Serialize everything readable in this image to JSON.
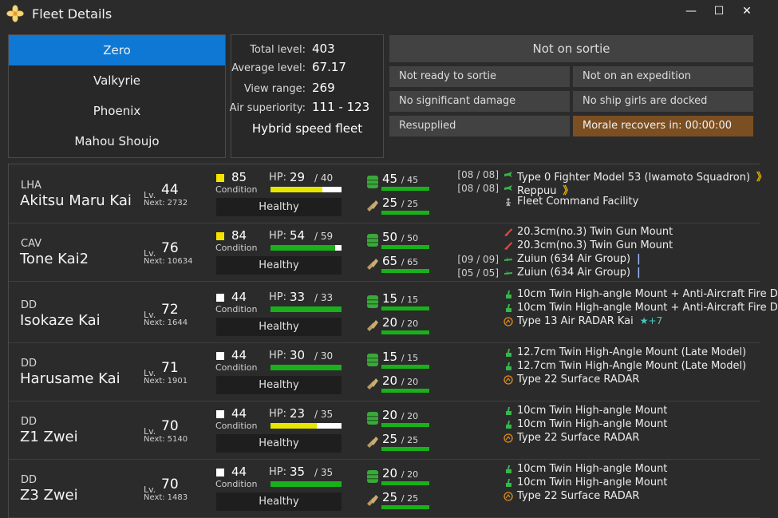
{
  "window": {
    "title": "Fleet Details",
    "minimize": "—",
    "maximize": "☐",
    "close": "✕"
  },
  "fleets": [
    {
      "label": "Zero",
      "active": true
    },
    {
      "label": "Valkyrie",
      "active": false
    },
    {
      "label": "Phoenix",
      "active": false
    },
    {
      "label": "Mahou Shoujo",
      "active": false
    }
  ],
  "stats": {
    "total_level_label": "Total level:",
    "total_level": "403",
    "avg_level_label": "Average level:",
    "avg_level": "67.17",
    "view_range_label": "View range:",
    "view_range": "269",
    "air_label": "Air superiority:",
    "air": "111 - 123",
    "speed": "Hybrid speed fleet"
  },
  "status": {
    "sortie": "Not on sortie",
    "ready": "Not ready to sortie",
    "expedition": "Not on an expedition",
    "damage": "No significant damage",
    "docked": "No ship girls are docked",
    "supply": "Resupplied",
    "morale": "Morale recovers in: 00:00:00"
  },
  "labels": {
    "lv": "Lv.",
    "next": "Next:",
    "condition": "Condition",
    "hp": "HP:"
  },
  "colors": {
    "accent": "#0f78d4",
    "hp_yellow": "#e6e600",
    "hp_green": "#19b119",
    "morale_bg": "#7b4f22"
  },
  "ships": [
    {
      "type": "LHA",
      "name": "Akitsu Maru Kai",
      "level": "44",
      "next": "2732",
      "condition": "85",
      "cond_color": "#f5e400",
      "hp": "29",
      "hp_max": "/ 40",
      "hp_fraction": 0.725,
      "hp_color": "#e6e600",
      "health": "Healthy",
      "fuel": "45",
      "fuel_max": "/ 45",
      "ammo": "25",
      "ammo_max": "/ 25",
      "equipment": [
        {
          "slot": "[08 / 08]",
          "icon": "fighter-icon",
          "name": "Type 0 Fighter Model 53 (Iwamoto Squadron)",
          "extra": "》",
          "extra_kind": "prof-yellow"
        },
        {
          "slot": "[08 / 08]",
          "icon": "fighter-icon",
          "name": "Reppuu",
          "extra": "》",
          "extra_kind": "prof-yellow"
        },
        {
          "slot": "",
          "icon": "facility-icon",
          "name": "Fleet Command Facility",
          "extra": "",
          "extra_kind": ""
        }
      ]
    },
    {
      "type": "CAV",
      "name": "Tone Kai2",
      "level": "76",
      "next": "10634",
      "condition": "84",
      "cond_color": "#f5e400",
      "hp": "54",
      "hp_max": "/ 59",
      "hp_fraction": 0.915,
      "hp_color": "#19b119",
      "health": "Healthy",
      "fuel": "50",
      "fuel_max": "/ 50",
      "ammo": "65",
      "ammo_max": "/ 65",
      "equipment": [
        {
          "slot": "",
          "icon": "heavy-gun-icon",
          "name": "20.3cm(no.3) Twin Gun Mount",
          "extra": "",
          "extra_kind": ""
        },
        {
          "slot": "",
          "icon": "heavy-gun-icon",
          "name": "20.3cm(no.3) Twin Gun Mount",
          "extra": "",
          "extra_kind": ""
        },
        {
          "slot": "[09 / 09]",
          "icon": "seaplane-icon",
          "name": "Zuiun (634 Air Group)",
          "extra": "|",
          "extra_kind": "prof-bar"
        },
        {
          "slot": "[05 / 05]",
          "icon": "seaplane-icon",
          "name": "Zuiun (634 Air Group)",
          "extra": "|",
          "extra_kind": "prof-bar"
        }
      ]
    },
    {
      "type": "DD",
      "name": "Isokaze Kai",
      "level": "72",
      "next": "1644",
      "condition": "44",
      "cond_color": "#ffffff",
      "hp": "33",
      "hp_max": "/ 33",
      "hp_fraction": 1.0,
      "hp_color": "#19b119",
      "health": "Healthy",
      "fuel": "15",
      "fuel_max": "/ 15",
      "ammo": "20",
      "ammo_max": "/ 20",
      "equipment": [
        {
          "slot": "",
          "icon": "ha-gun-icon",
          "name": "10cm Twin High-angle Mount + Anti-Aircraft Fire D",
          "extra": "",
          "extra_kind": ""
        },
        {
          "slot": "",
          "icon": "ha-gun-icon",
          "name": "10cm Twin High-angle Mount + Anti-Aircraft Fire D",
          "extra": "",
          "extra_kind": ""
        },
        {
          "slot": "",
          "icon": "radar-icon",
          "name": "Type 13 Air RADAR Kai",
          "extra": "★+7",
          "extra_kind": "improve"
        }
      ]
    },
    {
      "type": "DD",
      "name": "Harusame Kai",
      "level": "71",
      "next": "1901",
      "condition": "44",
      "cond_color": "#ffffff",
      "hp": "30",
      "hp_max": "/ 30",
      "hp_fraction": 1.0,
      "hp_color": "#19b119",
      "health": "Healthy",
      "fuel": "15",
      "fuel_max": "/ 15",
      "ammo": "20",
      "ammo_max": "/ 20",
      "equipment": [
        {
          "slot": "",
          "icon": "ha-gun-icon",
          "name": "12.7cm Twin High-Angle Mount (Late Model)",
          "extra": "",
          "extra_kind": ""
        },
        {
          "slot": "",
          "icon": "ha-gun-icon",
          "name": "12.7cm Twin High-Angle Mount (Late Model)",
          "extra": "",
          "extra_kind": ""
        },
        {
          "slot": "",
          "icon": "radar-icon",
          "name": "Type 22 Surface RADAR",
          "extra": "",
          "extra_kind": ""
        }
      ]
    },
    {
      "type": "DD",
      "name": "Z1 Zwei",
      "level": "70",
      "next": "5140",
      "condition": "44",
      "cond_color": "#ffffff",
      "hp": "23",
      "hp_max": "/ 35",
      "hp_fraction": 0.657,
      "hp_color": "#e6e600",
      "health": "Healthy",
      "fuel": "20",
      "fuel_max": "/ 20",
      "ammo": "25",
      "ammo_max": "/ 25",
      "equipment": [
        {
          "slot": "",
          "icon": "ha-gun-icon",
          "name": "10cm Twin High-angle Mount",
          "extra": "",
          "extra_kind": ""
        },
        {
          "slot": "",
          "icon": "ha-gun-icon",
          "name": "10cm Twin High-angle Mount",
          "extra": "",
          "extra_kind": ""
        },
        {
          "slot": "",
          "icon": "radar-icon",
          "name": "Type 22 Surface RADAR",
          "extra": "",
          "extra_kind": ""
        }
      ]
    },
    {
      "type": "DD",
      "name": "Z3 Zwei",
      "level": "70",
      "next": "1483",
      "condition": "44",
      "cond_color": "#ffffff",
      "hp": "35",
      "hp_max": "/ 35",
      "hp_fraction": 1.0,
      "hp_color": "#19b119",
      "health": "Healthy",
      "fuel": "20",
      "fuel_max": "/ 20",
      "ammo": "25",
      "ammo_max": "/ 25",
      "equipment": [
        {
          "slot": "",
          "icon": "ha-gun-icon",
          "name": "10cm Twin High-angle Mount",
          "extra": "",
          "extra_kind": ""
        },
        {
          "slot": "",
          "icon": "ha-gun-icon",
          "name": "10cm Twin High-angle Mount",
          "extra": "",
          "extra_kind": ""
        },
        {
          "slot": "",
          "icon": "radar-icon",
          "name": "Type 22 Surface RADAR",
          "extra": "",
          "extra_kind": ""
        }
      ]
    }
  ]
}
